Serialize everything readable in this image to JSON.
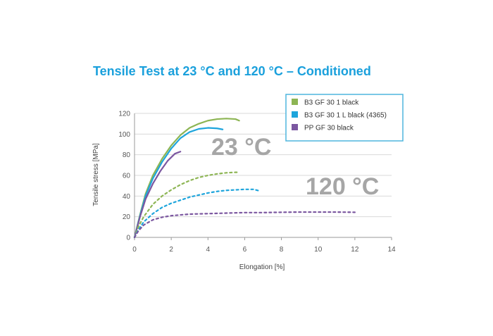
{
  "chart_data": {
    "type": "line",
    "title": "Tensile Test at 23 °C and 120 °C – Conditioned",
    "xlabel": "Elongation [%]",
    "ylabel": "Tensile stress [MPa]",
    "xlim": [
      0,
      14
    ],
    "ylim": [
      0,
      120
    ],
    "xticks": [
      0,
      2,
      4,
      6,
      8,
      10,
      12,
      14
    ],
    "yticks": [
      0,
      20,
      40,
      60,
      80,
      100,
      120
    ],
    "grid": "horizontal",
    "legend_position": "top-right",
    "annotations": [
      "23 °C",
      "120 °C"
    ],
    "series": [
      {
        "name": "B3 GF 30 1 black",
        "color": "#8db554",
        "style": "solid",
        "temperature": "23 °C",
        "x": [
          0,
          0.3,
          0.6,
          1,
          1.5,
          2,
          2.5,
          3,
          3.5,
          4,
          4.5,
          5,
          5.5,
          5.7
        ],
        "y": [
          0,
          22,
          42,
          60,
          76,
          89,
          99,
          106,
          110,
          113,
          114.5,
          115,
          114.5,
          113
        ]
      },
      {
        "name": "B3 GF 30 1 L black (4365)",
        "color": "#1ea5dc",
        "style": "solid",
        "temperature": "23 °C",
        "x": [
          0,
          0.3,
          0.6,
          1,
          1.5,
          2,
          2.5,
          3,
          3.5,
          4,
          4.5,
          4.8
        ],
        "y": [
          0,
          21,
          40,
          57,
          73,
          86,
          96,
          102,
          105,
          106,
          105.5,
          104.5
        ]
      },
      {
        "name": "PP GF 30 black",
        "color": "#7b57a0",
        "style": "solid",
        "temperature": "23 °C",
        "x": [
          0,
          0.3,
          0.6,
          1,
          1.4,
          1.8,
          2.2,
          2.5
        ],
        "y": [
          0,
          20,
          37,
          52,
          64,
          74,
          81,
          83
        ]
      },
      {
        "name": "B3 GF 30 1 black",
        "color": "#8db554",
        "style": "dashed",
        "temperature": "120 °C",
        "x": [
          0,
          0.2,
          0.5,
          1,
          1.5,
          2,
          2.5,
          3,
          3.5,
          4,
          4.5,
          5,
          5.5,
          5.7
        ],
        "y": [
          0,
          10,
          20,
          32,
          40,
          46,
          51,
          55,
          58,
          60,
          61.5,
          62.5,
          63,
          63
        ]
      },
      {
        "name": "B3 GF 30 1 L black (4365)",
        "color": "#1ea5dc",
        "style": "dashed",
        "temperature": "120 °C",
        "x": [
          0,
          0.2,
          0.5,
          1,
          1.5,
          2,
          2.5,
          3,
          3.5,
          4,
          4.5,
          5,
          5.5,
          6,
          6.5,
          6.8
        ],
        "y": [
          0,
          7,
          15,
          23,
          29,
          33,
          36,
          39,
          41,
          43,
          44.5,
          45.5,
          46,
          46.5,
          46.5,
          45
        ]
      },
      {
        "name": "PP GF 30 black",
        "color": "#7b57a0",
        "style": "dashed",
        "temperature": "120 °C",
        "x": [
          0,
          0.2,
          0.5,
          1,
          1.5,
          2,
          3,
          4,
          5,
          6,
          7,
          8,
          9,
          10,
          11,
          12
        ],
        "y": [
          0,
          6,
          12,
          17,
          19.5,
          21,
          22.5,
          23,
          23.5,
          24,
          24,
          24.3,
          24.5,
          24.5,
          24.5,
          24.3
        ]
      }
    ],
    "legend": [
      {
        "label": "B3 GF 30 1 black",
        "color": "#8db554"
      },
      {
        "label": "B3 GF 30 1 L black (4365)",
        "color": "#1ea5dc"
      },
      {
        "label": "PP GF 30 black",
        "color": "#7b57a0"
      }
    ]
  }
}
